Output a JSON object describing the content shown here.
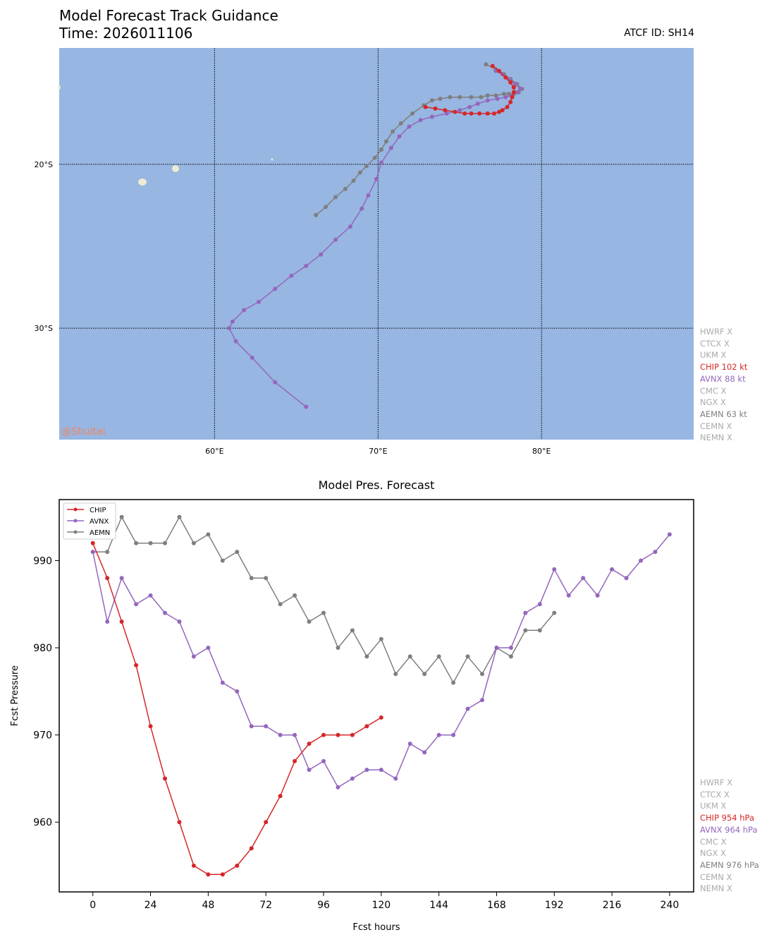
{
  "header": {
    "title": "Model Forecast Track Guidance",
    "time_line": "Time: 2026011106",
    "atcf_id": "ATCF ID: SH14"
  },
  "colors": {
    "CHIP": "#d62728",
    "AVNX": "#9467bd",
    "AEMN": "#7f7f7f",
    "inactive": "#aaaaaa",
    "ocean": "#97b6e1",
    "land": "#efebd3"
  },
  "map": {
    "lon_ticks": [
      "60°E",
      "70°E",
      "80°E"
    ],
    "lat_ticks": [
      "20°S",
      "30°S"
    ],
    "watermark": "@Shuitai",
    "legend": [
      {
        "name": "HWRF",
        "text": "HWRF X",
        "active": false
      },
      {
        "name": "CTCX",
        "text": "CTCX X",
        "active": false
      },
      {
        "name": "UKM",
        "text": "UKM X",
        "active": false
      },
      {
        "name": "CHIP",
        "text": "CHIP 102 kt",
        "active": true
      },
      {
        "name": "AVNX",
        "text": "AVNX 88 kt",
        "active": true
      },
      {
        "name": "CMC",
        "text": "CMC X",
        "active": false
      },
      {
        "name": "NGX",
        "text": "NGX X",
        "active": false
      },
      {
        "name": "AEMN",
        "text": "AEMN 63 kt",
        "active": true
      },
      {
        "name": "CEMN",
        "text": "CEMN X",
        "active": false
      },
      {
        "name": "NEMN",
        "text": "NEMN X",
        "active": false
      }
    ]
  },
  "chart_data": [
    {
      "type": "line",
      "subtype": "map-track",
      "title": "Model Forecast Track Guidance",
      "xlim": [
        50.5,
        89.3
      ],
      "ylim": [
        -36.8,
        -12.9
      ],
      "xticks": [
        60,
        70,
        80
      ],
      "yticks": [
        -20,
        -30
      ],
      "xtick_labels": [
        "60°E",
        "70°E",
        "80°E"
      ],
      "ytick_labels": [
        "20°S",
        "30°S"
      ],
      "grid": true,
      "series": [
        {
          "name": "CHIP",
          "lon": [
            77.0,
            77.4,
            77.8,
            78.1,
            78.3,
            78.3,
            78.2,
            78.1,
            77.9,
            77.6,
            77.4,
            77.1,
            76.7,
            76.2,
            75.7,
            75.3,
            74.7,
            74.1,
            73.5,
            72.9
          ],
          "lat": [
            -14.0,
            -14.3,
            -14.7,
            -15.0,
            -15.3,
            -15.6,
            -15.9,
            -16.2,
            -16.5,
            -16.7,
            -16.8,
            -16.9,
            -16.9,
            -16.9,
            -16.9,
            -16.9,
            -16.8,
            -16.7,
            -16.6,
            -16.5
          ]
        },
        {
          "name": "AVNX",
          "lon": [
            77.2,
            77.6,
            78.0,
            78.4,
            78.7,
            78.5,
            78.2,
            77.8,
            77.3,
            76.7,
            76.1,
            75.6,
            75.0,
            74.2,
            73.3,
            72.6,
            71.9,
            71.3,
            70.8,
            70.2,
            69.9,
            69.4,
            69.0,
            68.3,
            67.4,
            66.5,
            65.6,
            64.7,
            63.7,
            62.7,
            61.8,
            61.1,
            60.9,
            61.3,
            62.3,
            63.7,
            65.6
          ],
          "lat": [
            -14.3,
            -14.5,
            -14.8,
            -15.1,
            -15.4,
            -15.6,
            -15.8,
            -15.9,
            -16.0,
            -16.1,
            -16.3,
            -16.5,
            -16.7,
            -16.9,
            -17.1,
            -17.3,
            -17.7,
            -18.3,
            -19.0,
            -19.9,
            -20.9,
            -21.9,
            -22.7,
            -23.8,
            -24.6,
            -25.5,
            -26.2,
            -26.8,
            -27.6,
            -28.4,
            -28.9,
            -29.6,
            -30.0,
            -30.8,
            -31.8,
            -33.3,
            -34.8
          ]
        },
        {
          "name": "AEMN",
          "lon": [
            76.6,
            77.2,
            77.7,
            78.1,
            78.5,
            78.8,
            78.6,
            78.3,
            78.0,
            77.7,
            77.2,
            76.7,
            76.3,
            75.7,
            75.0,
            74.4,
            73.8,
            73.3,
            72.8,
            72.1,
            71.4,
            70.9,
            70.5,
            70.2,
            69.8,
            69.3,
            68.9,
            68.5,
            68.0,
            67.4,
            66.8,
            66.2
          ],
          "lat": [
            -13.9,
            -14.2,
            -14.5,
            -14.8,
            -15.1,
            -15.4,
            -15.6,
            -15.7,
            -15.7,
            -15.7,
            -15.8,
            -15.8,
            -15.9,
            -15.9,
            -15.9,
            -15.9,
            -16.0,
            -16.1,
            -16.4,
            -16.9,
            -17.5,
            -18.0,
            -18.6,
            -19.1,
            -19.6,
            -20.1,
            -20.5,
            -21.0,
            -21.5,
            -22.0,
            -22.6,
            -23.1
          ]
        }
      ]
    },
    {
      "type": "line",
      "title": "Model Pres. Forecast",
      "xlabel": "Fcst hours",
      "ylabel": "Fcst Pressure",
      "xlim": [
        -14,
        250
      ],
      "ylim": [
        952,
        997
      ],
      "xticks": [
        0,
        24,
        48,
        72,
        96,
        120,
        144,
        168,
        192,
        216,
        240
      ],
      "yticks": [
        960,
        970,
        980,
        990
      ],
      "legend_position": "top-left",
      "series": [
        {
          "name": "CHIP",
          "x": [
            0,
            6,
            12,
            18,
            24,
            30,
            36,
            42,
            48,
            54,
            60,
            66,
            72,
            78,
            84,
            90,
            96,
            102,
            108,
            114,
            120
          ],
          "y": [
            992,
            988,
            983,
            978,
            971,
            965,
            960,
            955,
            954,
            954,
            955,
            957,
            960,
            963,
            967,
            969,
            970,
            970,
            970,
            971,
            972
          ]
        },
        {
          "name": "AVNX",
          "x": [
            0,
            6,
            12,
            18,
            24,
            30,
            36,
            42,
            48,
            54,
            60,
            66,
            72,
            78,
            84,
            90,
            96,
            102,
            108,
            114,
            120,
            126,
            132,
            138,
            144,
            150,
            156,
            162,
            168,
            174,
            180,
            186,
            192,
            198,
            204,
            210,
            216,
            222,
            228,
            234,
            240
          ],
          "y": [
            991,
            983,
            988,
            985,
            986,
            984,
            983,
            979,
            980,
            976,
            975,
            971,
            971,
            970,
            970,
            966,
            967,
            964,
            965,
            966,
            966,
            965,
            969,
            968,
            970,
            970,
            973,
            974,
            980,
            980,
            984,
            985,
            989,
            986,
            988,
            986,
            989,
            988,
            990,
            991,
            993
          ]
        },
        {
          "name": "AEMN",
          "x": [
            0,
            6,
            12,
            18,
            24,
            30,
            36,
            42,
            48,
            54,
            60,
            66,
            72,
            78,
            84,
            90,
            96,
            102,
            108,
            114,
            120,
            126,
            132,
            138,
            144,
            150,
            156,
            162,
            168,
            174,
            180,
            186,
            192
          ],
          "y": [
            991,
            991,
            995,
            992,
            992,
            992,
            995,
            992,
            993,
            990,
            991,
            988,
            988,
            985,
            986,
            983,
            984,
            980,
            982,
            979,
            981,
            977,
            979,
            977,
            979,
            976,
            979,
            977,
            980,
            979,
            982,
            982,
            984
          ]
        }
      ]
    }
  ],
  "pressure_legend": [
    {
      "name": "HWRF",
      "text": "HWRF X",
      "active": false
    },
    {
      "name": "CTCX",
      "text": "CTCX X",
      "active": false
    },
    {
      "name": "UKM",
      "text": "UKM X",
      "active": false
    },
    {
      "name": "CHIP",
      "text": "CHIP 954 hPa",
      "active": true
    },
    {
      "name": "AVNX",
      "text": "AVNX 964 hPa",
      "active": true
    },
    {
      "name": "CMC",
      "text": "CMC X",
      "active": false
    },
    {
      "name": "NGX",
      "text": "NGX X",
      "active": false
    },
    {
      "name": "AEMN",
      "text": "AEMN 976 hPa",
      "active": true
    },
    {
      "name": "CEMN",
      "text": "CEMN X",
      "active": false
    },
    {
      "name": "NEMN",
      "text": "NEMN X",
      "active": false
    }
  ],
  "inset_legend": [
    "CHIP",
    "AVNX",
    "AEMN"
  ]
}
